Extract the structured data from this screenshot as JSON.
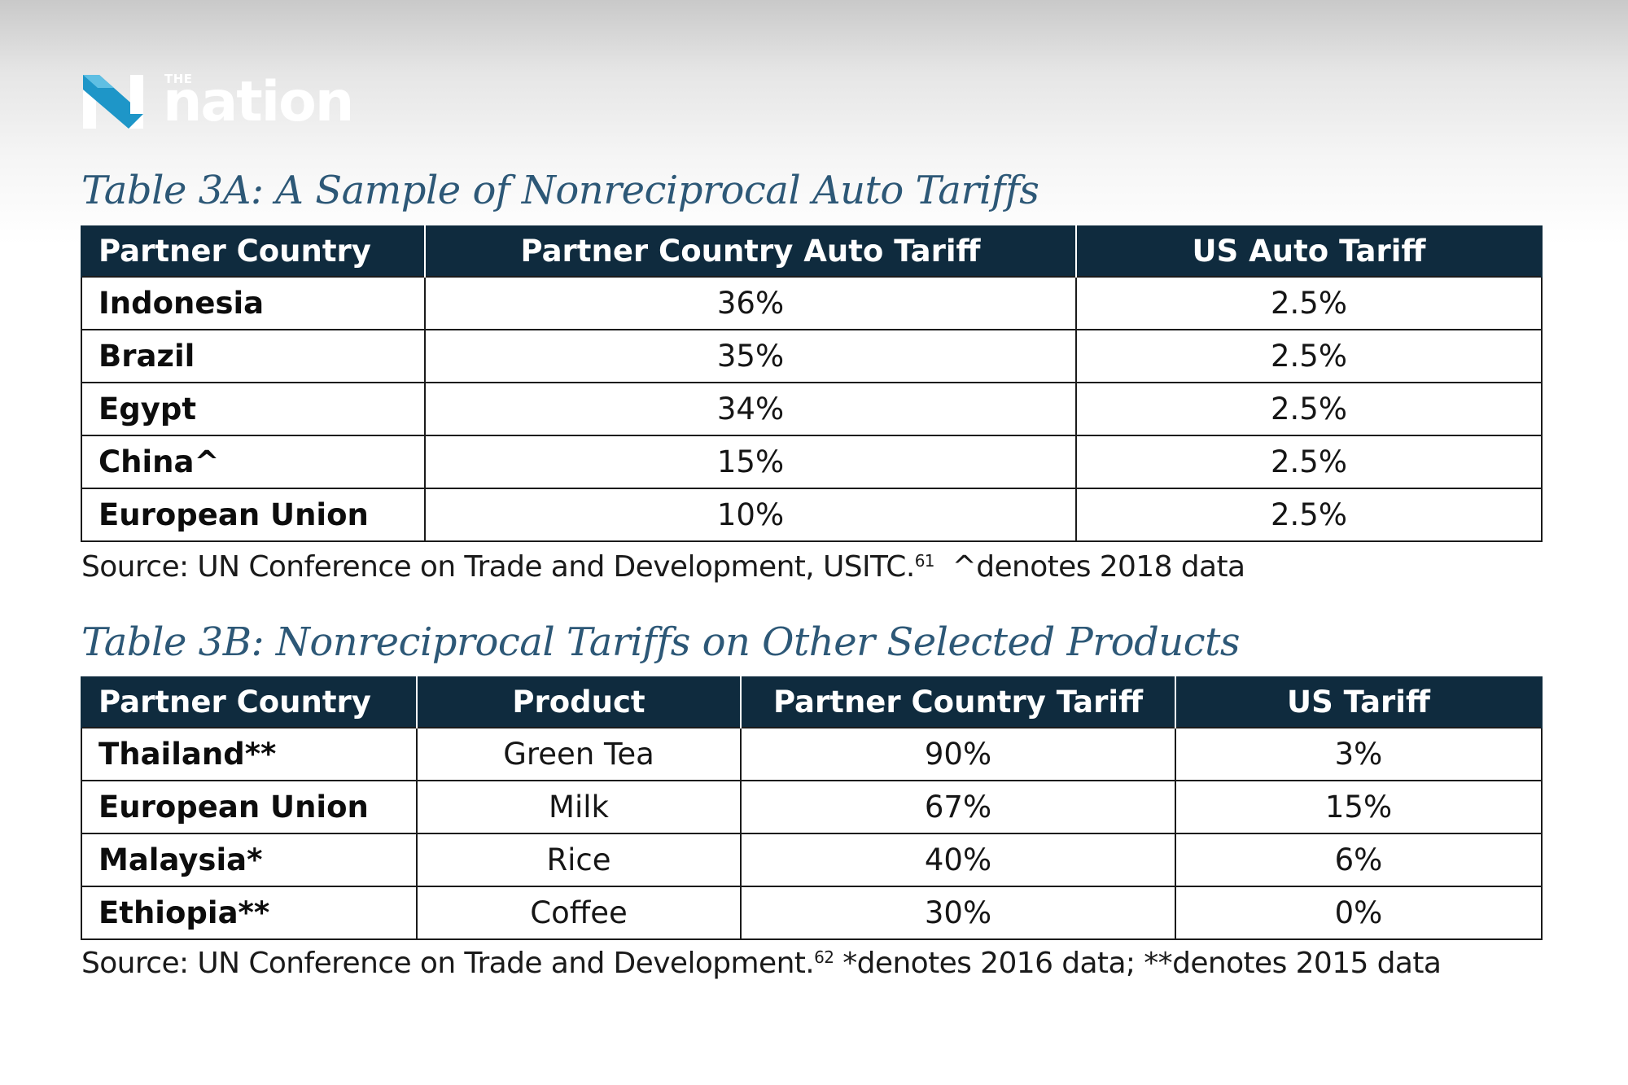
{
  "logo": {
    "small": "THE",
    "word": "nation"
  },
  "table_a": {
    "title": "Table 3A: A Sample of Nonreciprocal Auto Tariffs",
    "headers": [
      "Partner Country",
      "Partner Country Auto Tariff",
      "US Auto Tariff"
    ],
    "rows": [
      {
        "country": "Indonesia",
        "partner_tariff": "36%",
        "us_tariff": "2.5%"
      },
      {
        "country": "Brazil",
        "partner_tariff": "35%",
        "us_tariff": "2.5%"
      },
      {
        "country": "Egypt",
        "partner_tariff": "34%",
        "us_tariff": "2.5%"
      },
      {
        "country": "China^",
        "partner_tariff": "15%",
        "us_tariff": "2.5%"
      },
      {
        "country": "European Union",
        "partner_tariff": "10%",
        "us_tariff": "2.5%"
      }
    ],
    "source_text": "Source: UN Conference on Trade and Development, USITC.",
    "source_ref": "61",
    "source_note": "  ^denotes 2018 data"
  },
  "table_b": {
    "title": "Table 3B: Nonreciprocal Tariffs on Other Selected Products",
    "headers": [
      "Partner Country",
      "Product",
      "Partner Country Tariff",
      "US Tariff"
    ],
    "rows": [
      {
        "country": "Thailand**",
        "product": "Green Tea",
        "partner_tariff": "90%",
        "us_tariff": "3%"
      },
      {
        "country": "European Union",
        "product": "Milk",
        "partner_tariff": "67%",
        "us_tariff": "15%"
      },
      {
        "country": "Malaysia*",
        "product": "Rice",
        "partner_tariff": "40%",
        "us_tariff": "6%"
      },
      {
        "country": "Ethiopia**",
        "product": "Coffee",
        "partner_tariff": "30%",
        "us_tariff": "0%"
      }
    ],
    "source_text": "Source: UN Conference on Trade and Development.",
    "source_ref": "62",
    "source_note": " *denotes 2016 data; **denotes 2015 data"
  },
  "colors": {
    "header_bg": "#0f2b3e",
    "title": "#2d5877"
  }
}
